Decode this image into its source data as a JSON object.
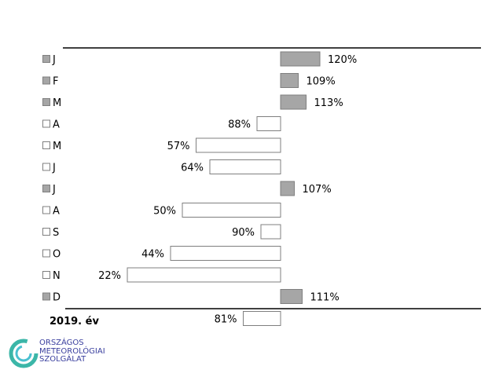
{
  "chart_data": {
    "type": "bar",
    "orientation": "horizontal",
    "baseline": 100,
    "categories": [
      "J",
      "F",
      "M",
      "A",
      "M",
      "J",
      "J",
      "A",
      "S",
      "O",
      "N",
      "D"
    ],
    "values": [
      120,
      109,
      113,
      88,
      57,
      64,
      107,
      50,
      90,
      44,
      22,
      111
    ],
    "value_format": "{v}%",
    "summary": {
      "label": "2019. év",
      "value": 81
    },
    "colors": {
      "above": "#a6a6a6",
      "below": "#ffffff",
      "border": "#7f7f7f"
    },
    "grid": false
  },
  "logo": {
    "lines": [
      "ORSZÁGOS",
      "METEOROLÓGIAI",
      "SZOLGÁLAT"
    ]
  }
}
